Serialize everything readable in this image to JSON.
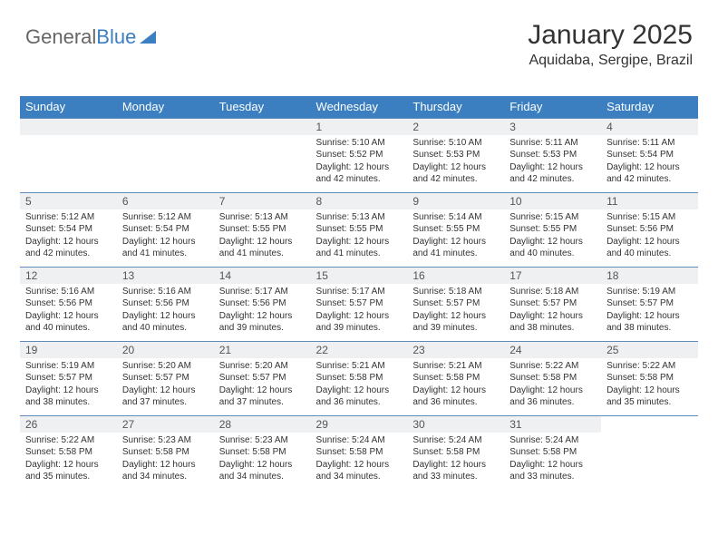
{
  "logo": {
    "part1": "General",
    "part2": "Blue"
  },
  "header": {
    "month_title": "January 2025",
    "location": "Aquidaba, Sergipe, Brazil"
  },
  "styling": {
    "header_bg": "#3b7fc0",
    "header_text": "#ffffff",
    "daynum_bg": "#eef0f1",
    "daynum_text": "#555555",
    "border_color": "#5f8bb8",
    "body_text": "#333333",
    "th_fontsize": 13,
    "daynum_fontsize": 12,
    "daytext_fontsize": 10
  },
  "day_names": [
    "Sunday",
    "Monday",
    "Tuesday",
    "Wednesday",
    "Thursday",
    "Friday",
    "Saturday"
  ],
  "weeks": [
    [
      null,
      null,
      null,
      {
        "num": "1",
        "sunrise": "5:10 AM",
        "sunset": "5:52 PM",
        "daylight": "12 hours and 42 minutes."
      },
      {
        "num": "2",
        "sunrise": "5:10 AM",
        "sunset": "5:53 PM",
        "daylight": "12 hours and 42 minutes."
      },
      {
        "num": "3",
        "sunrise": "5:11 AM",
        "sunset": "5:53 PM",
        "daylight": "12 hours and 42 minutes."
      },
      {
        "num": "4",
        "sunrise": "5:11 AM",
        "sunset": "5:54 PM",
        "daylight": "12 hours and 42 minutes."
      }
    ],
    [
      {
        "num": "5",
        "sunrise": "5:12 AM",
        "sunset": "5:54 PM",
        "daylight": "12 hours and 42 minutes."
      },
      {
        "num": "6",
        "sunrise": "5:12 AM",
        "sunset": "5:54 PM",
        "daylight": "12 hours and 41 minutes."
      },
      {
        "num": "7",
        "sunrise": "5:13 AM",
        "sunset": "5:55 PM",
        "daylight": "12 hours and 41 minutes."
      },
      {
        "num": "8",
        "sunrise": "5:13 AM",
        "sunset": "5:55 PM",
        "daylight": "12 hours and 41 minutes."
      },
      {
        "num": "9",
        "sunrise": "5:14 AM",
        "sunset": "5:55 PM",
        "daylight": "12 hours and 41 minutes."
      },
      {
        "num": "10",
        "sunrise": "5:15 AM",
        "sunset": "5:55 PM",
        "daylight": "12 hours and 40 minutes."
      },
      {
        "num": "11",
        "sunrise": "5:15 AM",
        "sunset": "5:56 PM",
        "daylight": "12 hours and 40 minutes."
      }
    ],
    [
      {
        "num": "12",
        "sunrise": "5:16 AM",
        "sunset": "5:56 PM",
        "daylight": "12 hours and 40 minutes."
      },
      {
        "num": "13",
        "sunrise": "5:16 AM",
        "sunset": "5:56 PM",
        "daylight": "12 hours and 40 minutes."
      },
      {
        "num": "14",
        "sunrise": "5:17 AM",
        "sunset": "5:56 PM",
        "daylight": "12 hours and 39 minutes."
      },
      {
        "num": "15",
        "sunrise": "5:17 AM",
        "sunset": "5:57 PM",
        "daylight": "12 hours and 39 minutes."
      },
      {
        "num": "16",
        "sunrise": "5:18 AM",
        "sunset": "5:57 PM",
        "daylight": "12 hours and 39 minutes."
      },
      {
        "num": "17",
        "sunrise": "5:18 AM",
        "sunset": "5:57 PM",
        "daylight": "12 hours and 38 minutes."
      },
      {
        "num": "18",
        "sunrise": "5:19 AM",
        "sunset": "5:57 PM",
        "daylight": "12 hours and 38 minutes."
      }
    ],
    [
      {
        "num": "19",
        "sunrise": "5:19 AM",
        "sunset": "5:57 PM",
        "daylight": "12 hours and 38 minutes."
      },
      {
        "num": "20",
        "sunrise": "5:20 AM",
        "sunset": "5:57 PM",
        "daylight": "12 hours and 37 minutes."
      },
      {
        "num": "21",
        "sunrise": "5:20 AM",
        "sunset": "5:57 PM",
        "daylight": "12 hours and 37 minutes."
      },
      {
        "num": "22",
        "sunrise": "5:21 AM",
        "sunset": "5:58 PM",
        "daylight": "12 hours and 36 minutes."
      },
      {
        "num": "23",
        "sunrise": "5:21 AM",
        "sunset": "5:58 PM",
        "daylight": "12 hours and 36 minutes."
      },
      {
        "num": "24",
        "sunrise": "5:22 AM",
        "sunset": "5:58 PM",
        "daylight": "12 hours and 36 minutes."
      },
      {
        "num": "25",
        "sunrise": "5:22 AM",
        "sunset": "5:58 PM",
        "daylight": "12 hours and 35 minutes."
      }
    ],
    [
      {
        "num": "26",
        "sunrise": "5:22 AM",
        "sunset": "5:58 PM",
        "daylight": "12 hours and 35 minutes."
      },
      {
        "num": "27",
        "sunrise": "5:23 AM",
        "sunset": "5:58 PM",
        "daylight": "12 hours and 34 minutes."
      },
      {
        "num": "28",
        "sunrise": "5:23 AM",
        "sunset": "5:58 PM",
        "daylight": "12 hours and 34 minutes."
      },
      {
        "num": "29",
        "sunrise": "5:24 AM",
        "sunset": "5:58 PM",
        "daylight": "12 hours and 34 minutes."
      },
      {
        "num": "30",
        "sunrise": "5:24 AM",
        "sunset": "5:58 PM",
        "daylight": "12 hours and 33 minutes."
      },
      {
        "num": "31",
        "sunrise": "5:24 AM",
        "sunset": "5:58 PM",
        "daylight": "12 hours and 33 minutes."
      },
      null
    ]
  ],
  "labels": {
    "sunrise": "Sunrise:",
    "sunset": "Sunset:",
    "daylight": "Daylight:"
  }
}
